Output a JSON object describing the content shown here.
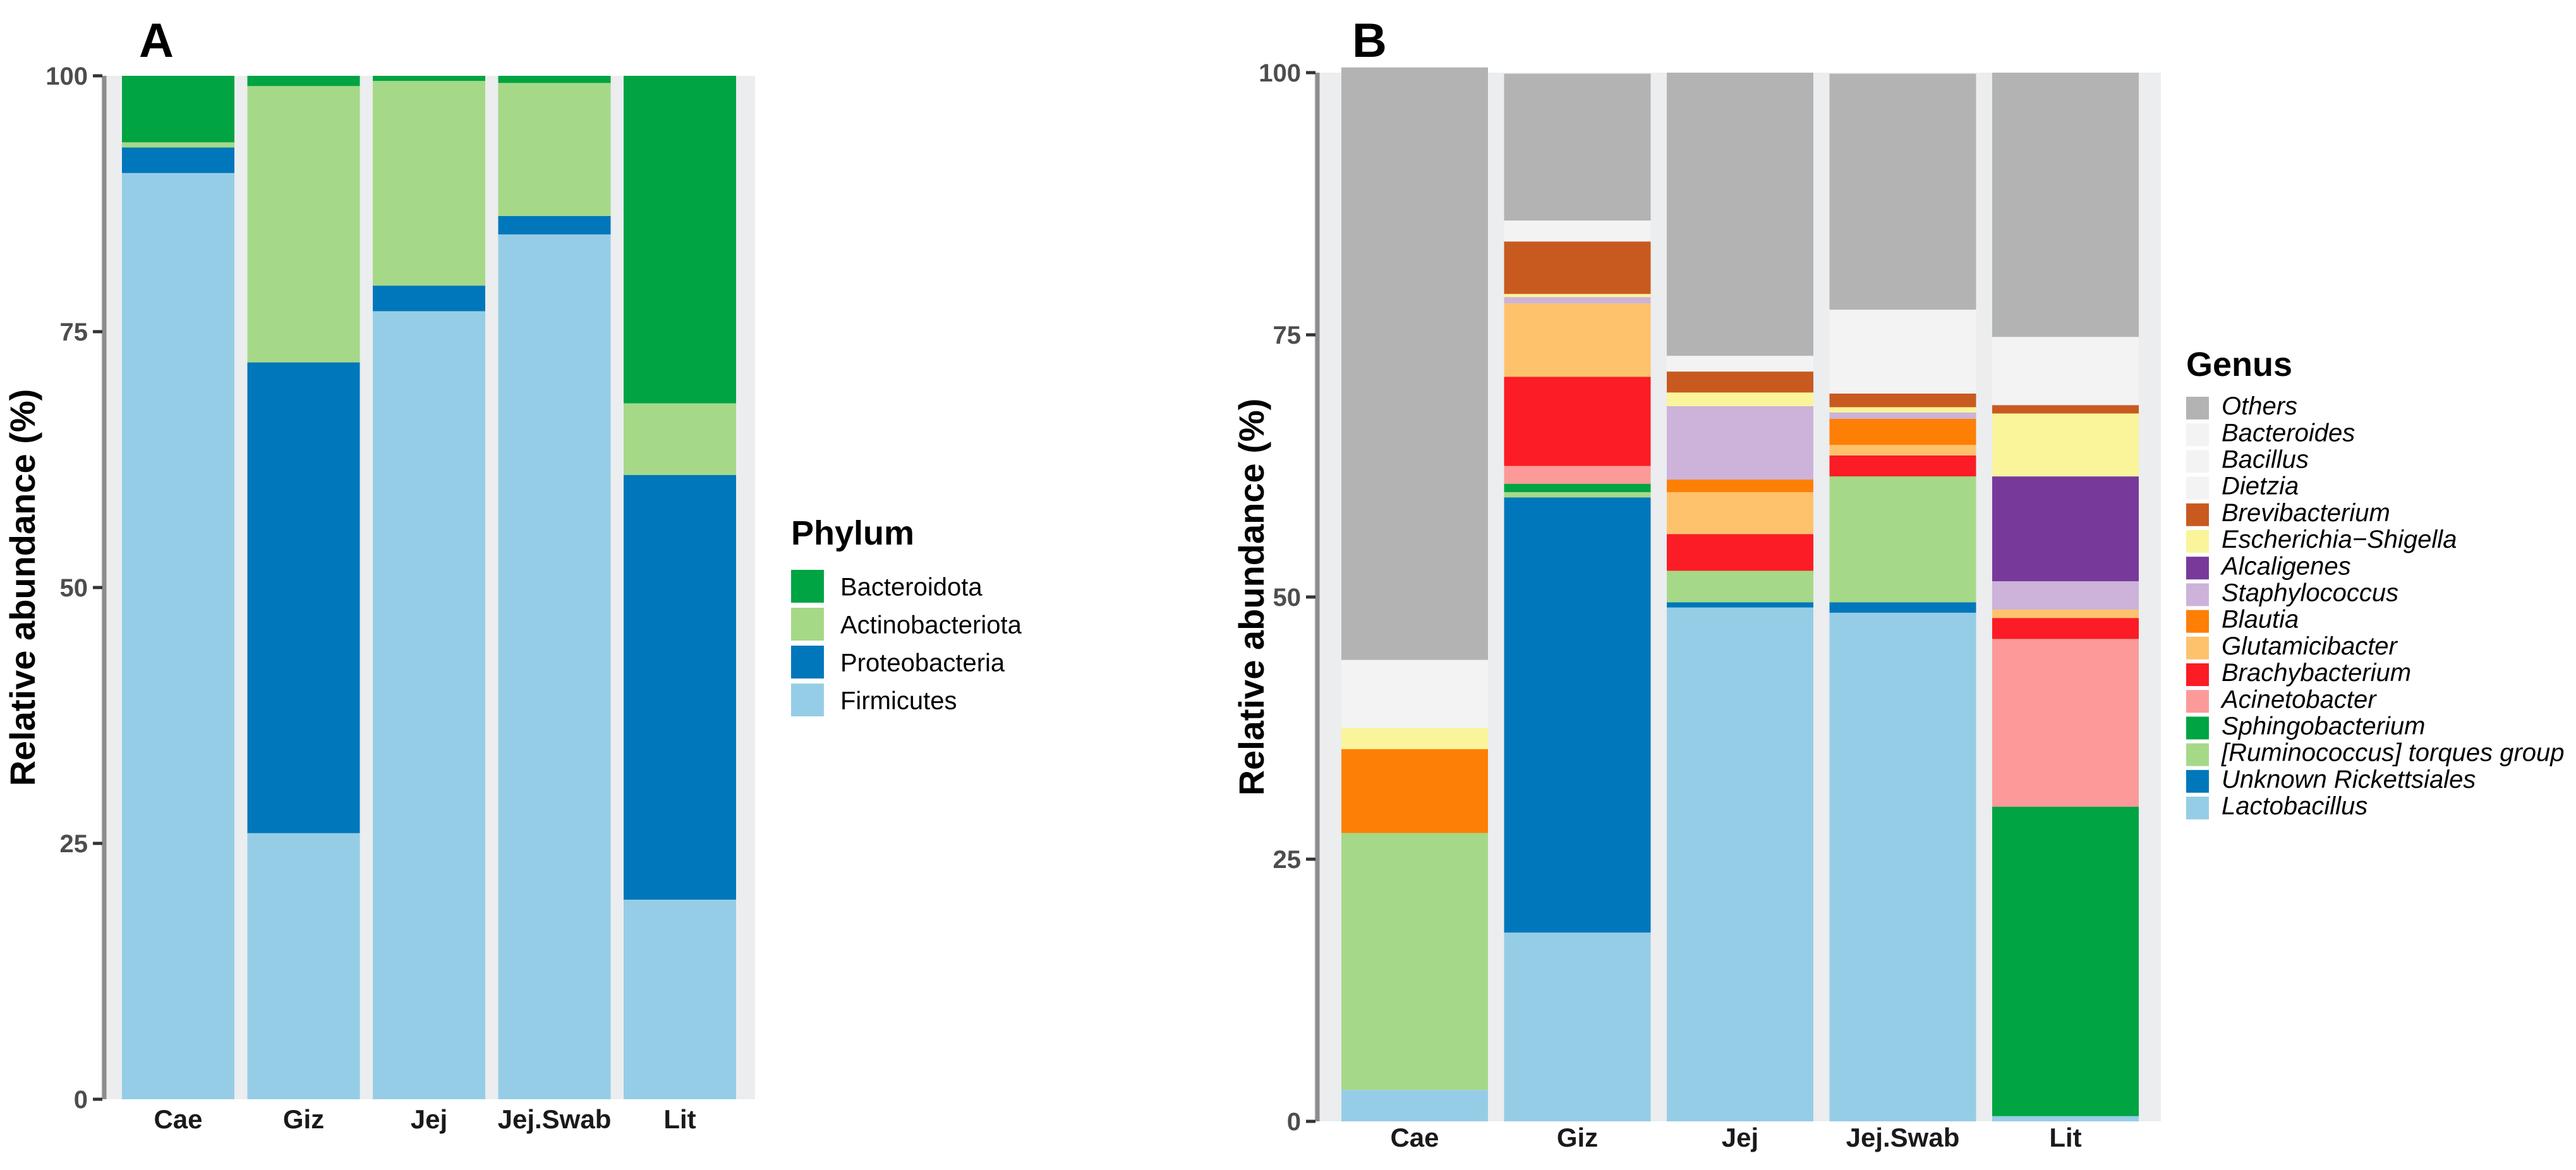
{
  "chart_data": [
    {
      "panel": "A",
      "type": "bar",
      "stacked": true,
      "ylabel": "Relative abundance (%)",
      "xlabel": "",
      "ylim": [
        0,
        100
      ],
      "yticks": [
        "0",
        "25",
        "50",
        "75",
        "100"
      ],
      "categories": [
        "Cae",
        "Giz",
        "Jej",
        "Jej.Swab",
        "Lit"
      ],
      "legend_title": "Phylum",
      "legend_position": "right",
      "series": [
        {
          "name": "Firmicutes",
          "color": "#96cde6",
          "values": [
            90.5,
            26.0,
            77.0,
            84.5,
            19.5
          ]
        },
        {
          "name": "Proteobacteria",
          "color": "#0077bb",
          "values": [
            2.5,
            46.0,
            2.5,
            1.8,
            41.5
          ]
        },
        {
          "name": "Actinobacteriota",
          "color": "#a5d987",
          "values": [
            0.5,
            27.0,
            20.0,
            13.0,
            7.0
          ]
        },
        {
          "name": "Bacteroidota",
          "color": "#00a442",
          "values": [
            6.5,
            1.0,
            0.5,
            0.7,
            32.0
          ]
        }
      ],
      "legend_order": [
        "Bacteroidota",
        "Actinobacteriota",
        "Proteobacteria",
        "Firmicutes"
      ]
    },
    {
      "panel": "B",
      "type": "bar",
      "stacked": true,
      "ylabel": "Relative abundance (%)",
      "xlabel": "",
      "ylim": [
        0,
        100
      ],
      "yticks": [
        "0",
        "25",
        "50",
        "75",
        "100"
      ],
      "categories": [
        "Cae",
        "Giz",
        "Jej",
        "Jej.Swab",
        "Lit"
      ],
      "legend_title": "Genus",
      "legend_position": "right",
      "series": [
        {
          "name": "Lactobacillus",
          "color": "#96cde6",
          "values": [
            3.0,
            18.0,
            49.0,
            48.5,
            0.5
          ]
        },
        {
          "name": "Unknown Rickettsiales",
          "color": "#0077bb",
          "values": [
            0,
            41.5,
            0.5,
            1.0,
            0
          ]
        },
        {
          "name": "[Ruminococcus] torques group",
          "color": "#a5d987",
          "values": [
            24.5,
            0.5,
            3.0,
            12.0,
            0
          ]
        },
        {
          "name": "Sphingobacterium",
          "color": "#00a442",
          "values": [
            0,
            0.8,
            0,
            0,
            29.5
          ]
        },
        {
          "name": "Acinetobacter",
          "color": "#fb9a99",
          "values": [
            0,
            1.7,
            0,
            0,
            16.0
          ]
        },
        {
          "name": "Brachybacterium",
          "color": "#fb1c25",
          "values": [
            0,
            8.5,
            3.5,
            2.0,
            2.0
          ]
        },
        {
          "name": "Glutamicibacter",
          "color": "#fec26d",
          "values": [
            0,
            7.0,
            4.0,
            1.0,
            0.8
          ]
        },
        {
          "name": "Blautia",
          "color": "#fe7f05",
          "values": [
            8.0,
            0,
            1.2,
            2.5,
            0
          ]
        },
        {
          "name": "Staphylococcus",
          "color": "#cdb2da",
          "values": [
            0,
            0.6,
            7.0,
            0.6,
            2.7
          ]
        },
        {
          "name": "Alcaligenes",
          "color": "#783a9a",
          "values": [
            0,
            0,
            0,
            0,
            10.0
          ]
        },
        {
          "name": "Escherichia−Shigella",
          "color": "#faf49a",
          "values": [
            2.0,
            0.3,
            1.3,
            0.5,
            6.0
          ]
        },
        {
          "name": "Brevibacterium",
          "color": "#c85a20",
          "values": [
            0,
            5.0,
            2.0,
            1.3,
            0.8
          ]
        },
        {
          "name": "Dietzia",
          "color": "#f3f3f3",
          "values": [
            0,
            0,
            0,
            0,
            0
          ]
        },
        {
          "name": "Bacillus",
          "color": "#f3f3f3",
          "values": [
            6.5,
            2.0,
            1.5,
            8.0,
            6.5
          ]
        },
        {
          "name": "Bacteroides",
          "color": "#f3f3f3",
          "values": [
            0,
            0,
            0,
            0,
            0
          ]
        },
        {
          "name": "Others",
          "color": "#b3b3b3",
          "values": [
            56.5,
            14.0,
            27.0,
            22.5,
            25.2
          ]
        }
      ],
      "legend_order": [
        "Others",
        "Bacteroides",
        "Bacillus",
        "Dietzia",
        "Brevibacterium",
        "Escherichia−Shigella",
        "Alcaligenes",
        "Staphylococcus",
        "Blautia",
        "Glutamicibacter",
        "Brachybacterium",
        "Acinetobacter",
        "Sphingobacterium",
        "[Ruminococcus] torques group",
        "Unknown Rickettsiales",
        "Lactobacillus"
      ]
    }
  ]
}
